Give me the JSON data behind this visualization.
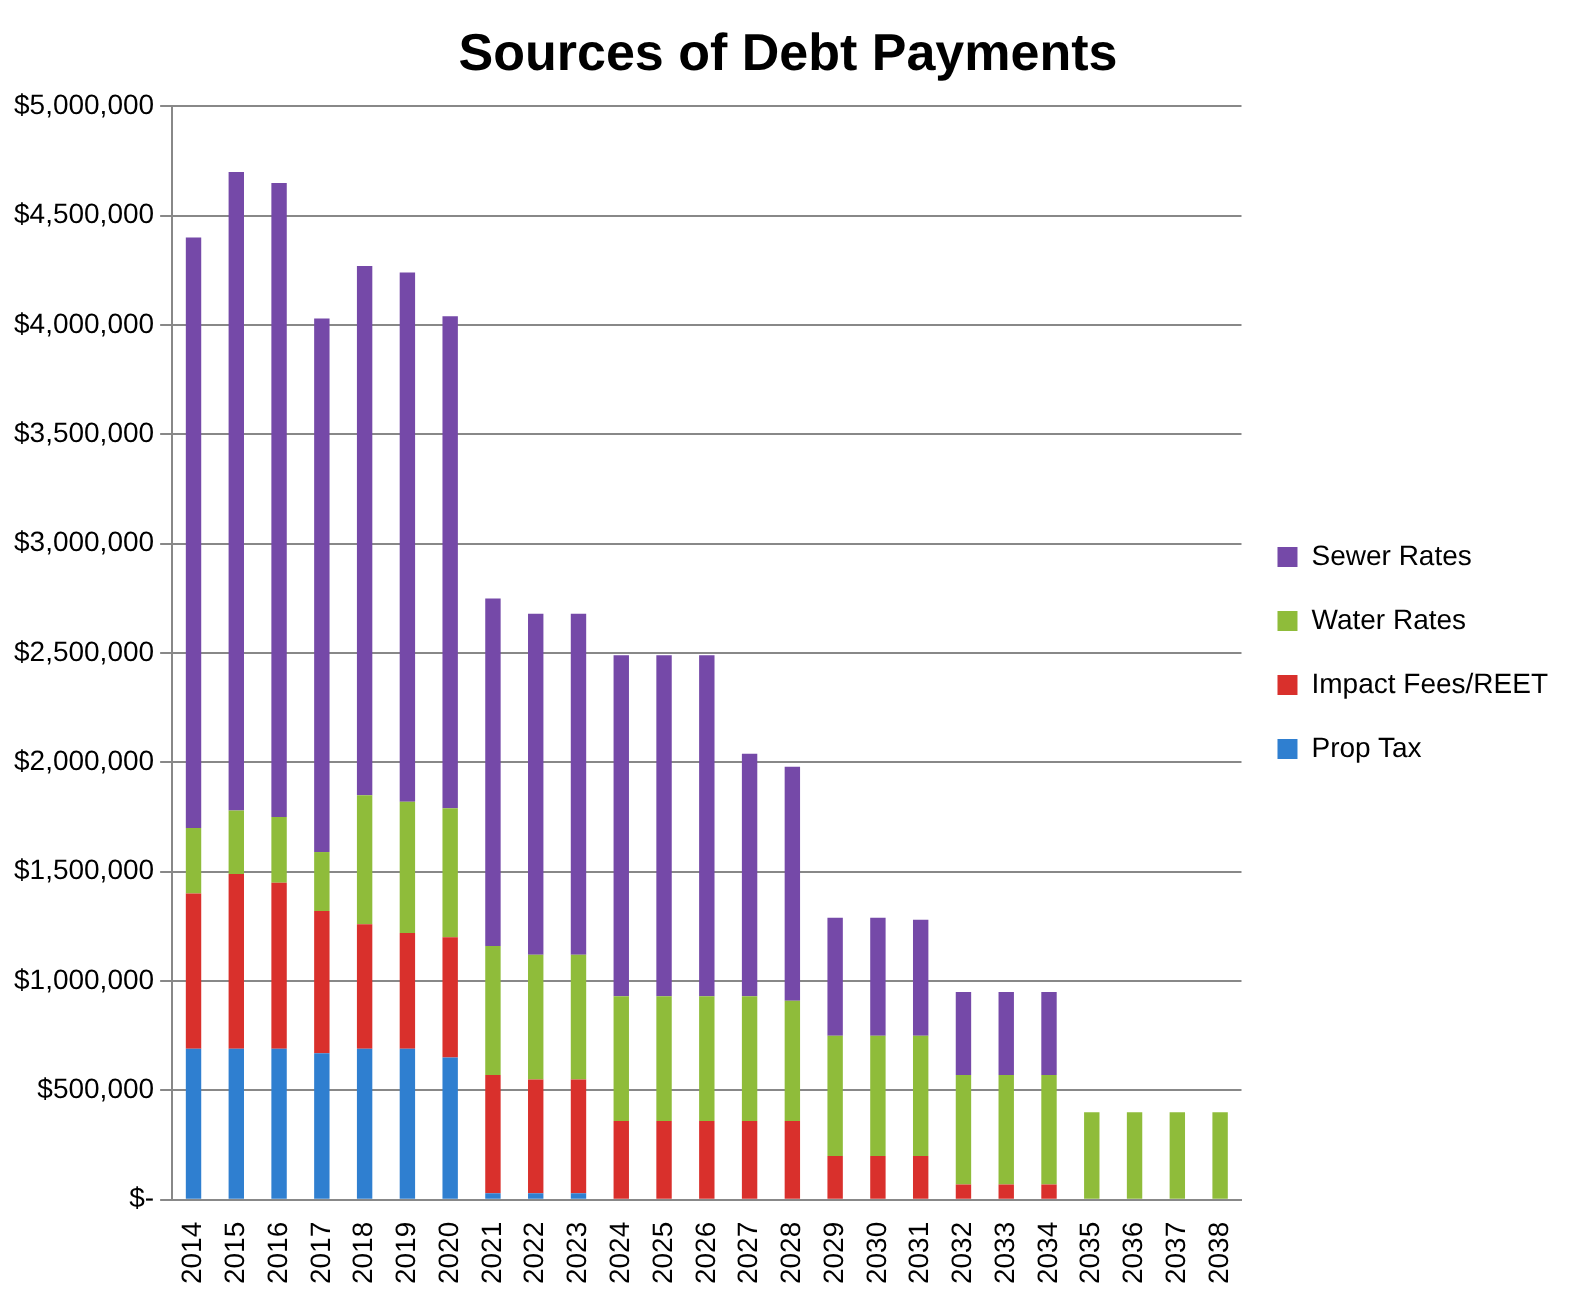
{
  "chart_data": {
    "type": "bar",
    "title": "Sources of Debt Payments",
    "stacked": true,
    "categories": [
      "2014",
      "2015",
      "2016",
      "2017",
      "2018",
      "2019",
      "2020",
      "2021",
      "2022",
      "2023",
      "2024",
      "2025",
      "2026",
      "2027",
      "2028",
      "2029",
      "2030",
      "2031",
      "2032",
      "2033",
      "2034",
      "2035",
      "2036",
      "2037",
      "2038"
    ],
    "series": [
      {
        "name": "Prop Tax",
        "color": "#2f7fd0",
        "values": [
          690000,
          690000,
          690000,
          670000,
          690000,
          690000,
          650000,
          30000,
          30000,
          30000,
          0,
          0,
          0,
          0,
          0,
          0,
          0,
          0,
          0,
          0,
          0,
          0,
          0,
          0,
          0
        ]
      },
      {
        "name": "Impact Fees/REET",
        "color": "#d9302c",
        "values": [
          710000,
          800000,
          760000,
          650000,
          570000,
          530000,
          550000,
          540000,
          520000,
          520000,
          360000,
          360000,
          360000,
          360000,
          360000,
          200000,
          200000,
          200000,
          70000,
          70000,
          70000,
          0,
          0,
          0,
          0
        ]
      },
      {
        "name": "Water Rates",
        "color": "#8fbc3a",
        "values": [
          300000,
          290000,
          300000,
          270000,
          590000,
          600000,
          590000,
          590000,
          570000,
          570000,
          570000,
          570000,
          570000,
          570000,
          550000,
          550000,
          550000,
          550000,
          500000,
          500000,
          500000,
          400000,
          400000,
          400000,
          400000
        ]
      },
      {
        "name": "Sewer Rates",
        "color": "#7549a8",
        "values": [
          2700000,
          2920000,
          2900000,
          2440000,
          2420000,
          2420000,
          2250000,
          1590000,
          1560000,
          1560000,
          1560000,
          1560000,
          1560000,
          1110000,
          1070000,
          540000,
          540000,
          530000,
          380000,
          380000,
          380000,
          0,
          0,
          0,
          0
        ]
      }
    ],
    "ylim": [
      0,
      5000000
    ],
    "yticks": [
      {
        "value": 0,
        "label": "$-"
      },
      {
        "value": 500000,
        "label": "$500,000"
      },
      {
        "value": 1000000,
        "label": "$1,000,000"
      },
      {
        "value": 1500000,
        "label": "$1,500,000"
      },
      {
        "value": 2000000,
        "label": "$2,000,000"
      },
      {
        "value": 2500000,
        "label": "$2,500,000"
      },
      {
        "value": 3000000,
        "label": "$3,000,000"
      },
      {
        "value": 3500000,
        "label": "$3,500,000"
      },
      {
        "value": 4000000,
        "label": "$4,000,000"
      },
      {
        "value": 4500000,
        "label": "$4,500,000"
      },
      {
        "value": 5000000,
        "label": "$5,000,000"
      }
    ],
    "grid": "y",
    "legend": "right"
  }
}
